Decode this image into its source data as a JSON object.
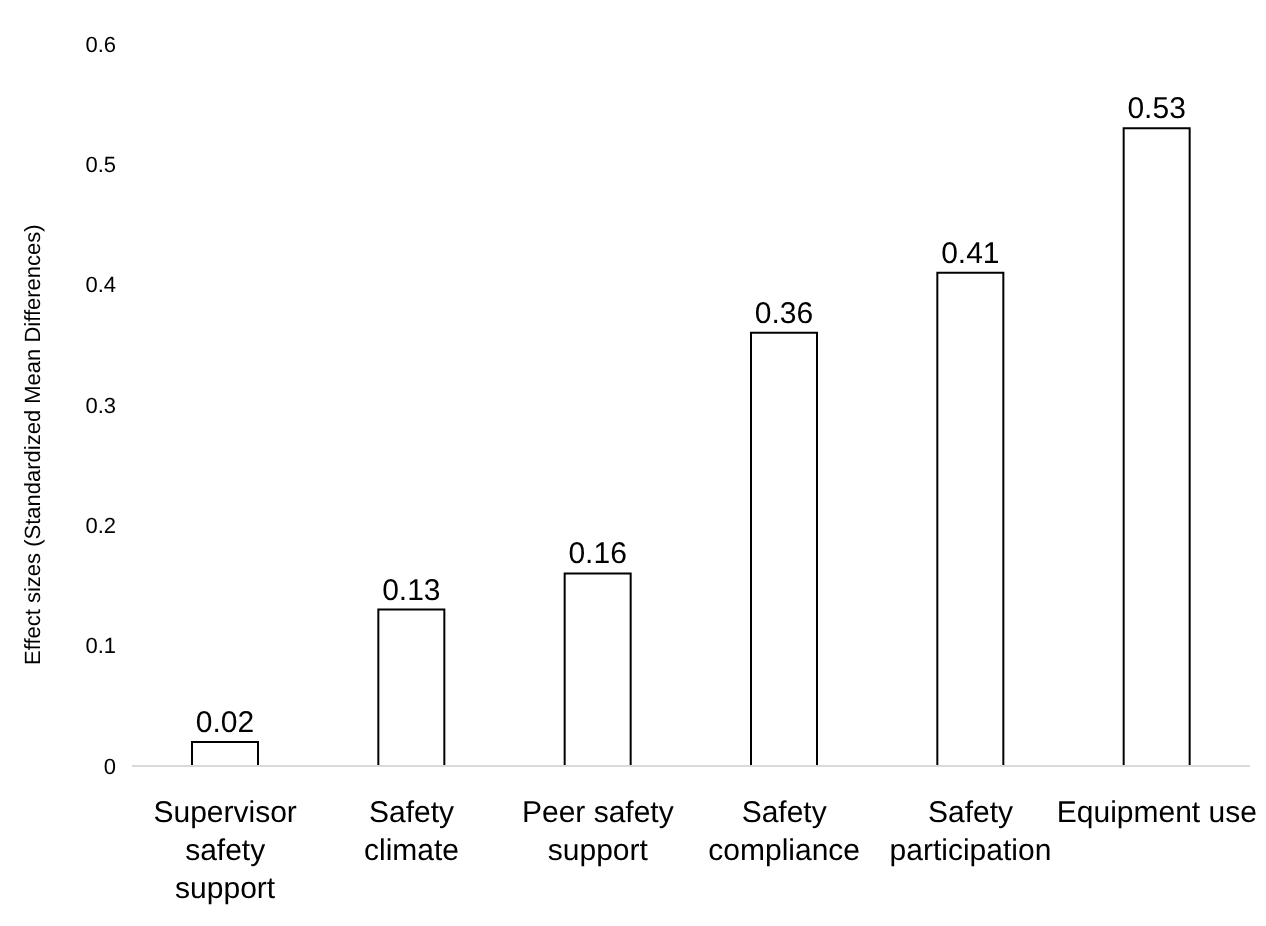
{
  "chart_data": {
    "type": "bar",
    "ylabel": "Effect sizes (Standardized Mean Differences)",
    "categories": [
      "Supervisor safety support",
      "Safety climate",
      "Peer safety support",
      "Safety compliance",
      "Safety participation",
      "Equipment use"
    ],
    "values": [
      0.02,
      0.13,
      0.16,
      0.36,
      0.41,
      0.53
    ],
    "color": "#ffffff",
    "ylim": [
      0,
      0.6
    ],
    "yticks": [
      0,
      0.1,
      0.2,
      0.3,
      0.4,
      0.5,
      0.6
    ],
    "grid": false,
    "data_labels": true
  }
}
